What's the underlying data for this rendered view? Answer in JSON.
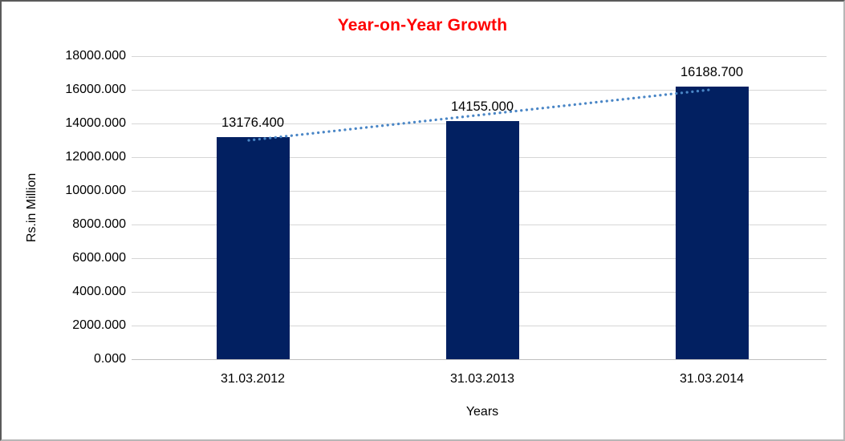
{
  "chart_data": {
    "type": "bar",
    "title": "Year-on-Year Growth",
    "title_color": "#fe0000",
    "xlabel": "Years",
    "ylabel": "Rs.in Million",
    "categories": [
      "31.03.2012",
      "31.03.2013",
      "31.03.2014"
    ],
    "values": [
      13176.4,
      14155.0,
      16188.7
    ],
    "data_labels": [
      "13176.400",
      "14155.000",
      "16188.700"
    ],
    "data_label_decimals": 3,
    "ylim": [
      0,
      18000
    ],
    "ytick_step": 2000,
    "ytick_decimals": 3,
    "grid": "horizontal",
    "legend": "none",
    "bar_color": "#022061",
    "gridline_color": "#d6d6d6",
    "axis_line_color": "#bfbfbf",
    "trendline": {
      "type": "linear",
      "style": "dotted",
      "color": "#4a86c6"
    }
  }
}
